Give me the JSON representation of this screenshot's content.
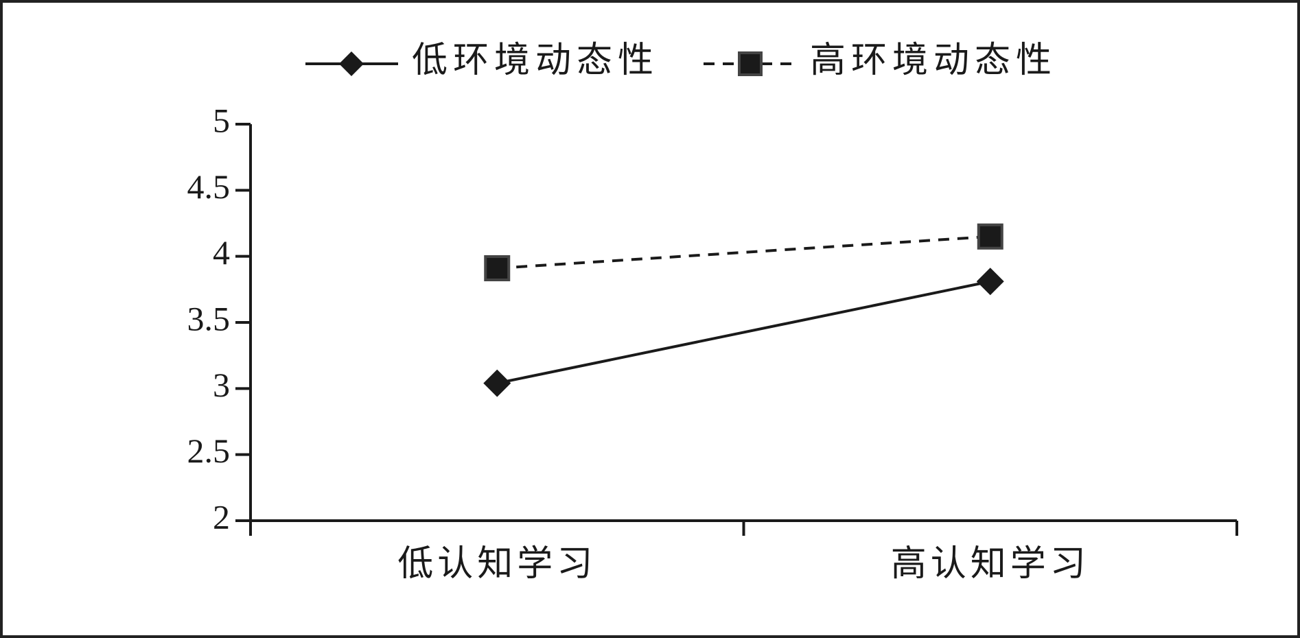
{
  "chart_data": {
    "type": "line",
    "categories": [
      "低认知学习",
      "高认知学习"
    ],
    "series": [
      {
        "name": "低环境动态性",
        "color": "#1a1a1a",
        "values": [
          3.04,
          3.81
        ]
      },
      {
        "name": "高环境动态性",
        "color": "#1a1a1a",
        "values": [
          3.91,
          4.15
        ]
      }
    ],
    "ylim": [
      2,
      5
    ],
    "yticks": [
      2,
      2.5,
      3,
      3.5,
      4,
      4.5,
      5
    ],
    "grid": false,
    "legend": "top"
  }
}
